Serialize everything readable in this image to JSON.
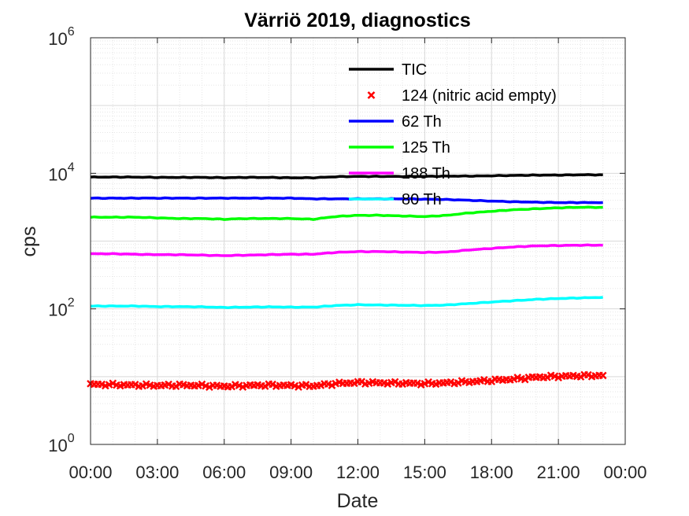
{
  "chart_data": {
    "type": "line",
    "title": "Värriö 2019, diagnostics",
    "xlabel": "Date",
    "ylabel": "cps",
    "yscale": "log",
    "ylim": [
      1,
      1000000
    ],
    "xlim": [
      "00:00",
      "24:00"
    ],
    "x_ticks": [
      "00:00",
      "03:00",
      "06:00",
      "09:00",
      "12:00",
      "15:00",
      "18:00",
      "21:00",
      "00:00"
    ],
    "y_ticks": [
      {
        "base": "10",
        "exp": "0"
      },
      {
        "base": "10",
        "exp": "2"
      },
      {
        "base": "10",
        "exp": "4"
      },
      {
        "base": "10",
        "exp": "6"
      }
    ],
    "grid": true,
    "legend_position": "top-right",
    "x_hours": [
      0,
      1,
      2,
      3,
      4,
      5,
      6,
      7,
      8,
      9,
      10,
      11,
      12,
      13,
      14,
      15,
      16,
      17,
      18,
      19,
      20,
      21,
      22,
      23
    ],
    "series": [
      {
        "name": "TIC",
        "color": "#000000",
        "style": "line",
        "values": [
          8800,
          8800,
          8800,
          8700,
          8700,
          8700,
          8600,
          8700,
          8700,
          8600,
          8600,
          8900,
          9000,
          9000,
          9000,
          9000,
          9100,
          9100,
          9200,
          9300,
          9400,
          9400,
          9500,
          9500
        ]
      },
      {
        "name": "124 (nitric acid empty)",
        "color": "#ff0000",
        "style": "marker",
        "values": [
          7.7,
          7.6,
          7.5,
          7.4,
          7.5,
          7.4,
          7.2,
          7.4,
          7.5,
          7.4,
          7.3,
          7.9,
          8.2,
          8.1,
          8.0,
          7.9,
          8.1,
          8.4,
          8.8,
          9.2,
          9.8,
          10.1,
          10.3,
          10.4
        ]
      },
      {
        "name": "62 Th",
        "color": "#0000ff",
        "style": "line",
        "values": [
          4300,
          4300,
          4300,
          4300,
          4300,
          4300,
          4300,
          4300,
          4300,
          4300,
          4200,
          4200,
          4200,
          4200,
          4200,
          4150,
          4100,
          4000,
          3900,
          3800,
          3750,
          3700,
          3700,
          3700
        ]
      },
      {
        "name": "125 Th",
        "color": "#00ff00",
        "style": "line",
        "values": [
          2250,
          2250,
          2250,
          2200,
          2150,
          2150,
          2100,
          2150,
          2150,
          2150,
          2100,
          2300,
          2400,
          2400,
          2350,
          2300,
          2400,
          2600,
          2750,
          2900,
          3000,
          3100,
          3150,
          3150
        ]
      },
      {
        "name": "188 Th",
        "color": "#ff00ff",
        "style": "line",
        "values": [
          650,
          650,
          640,
          630,
          630,
          620,
          610,
          620,
          630,
          640,
          640,
          680,
          700,
          700,
          690,
          680,
          690,
          740,
          780,
          820,
          850,
          860,
          870,
          870
        ]
      },
      {
        "name": "80 Th",
        "color": "#00ffff",
        "style": "line",
        "values": [
          110,
          110,
          110,
          108,
          108,
          107,
          105,
          106,
          107,
          106,
          106,
          112,
          115,
          114,
          113,
          112,
          114,
          120,
          126,
          132,
          138,
          142,
          145,
          148
        ]
      }
    ]
  }
}
